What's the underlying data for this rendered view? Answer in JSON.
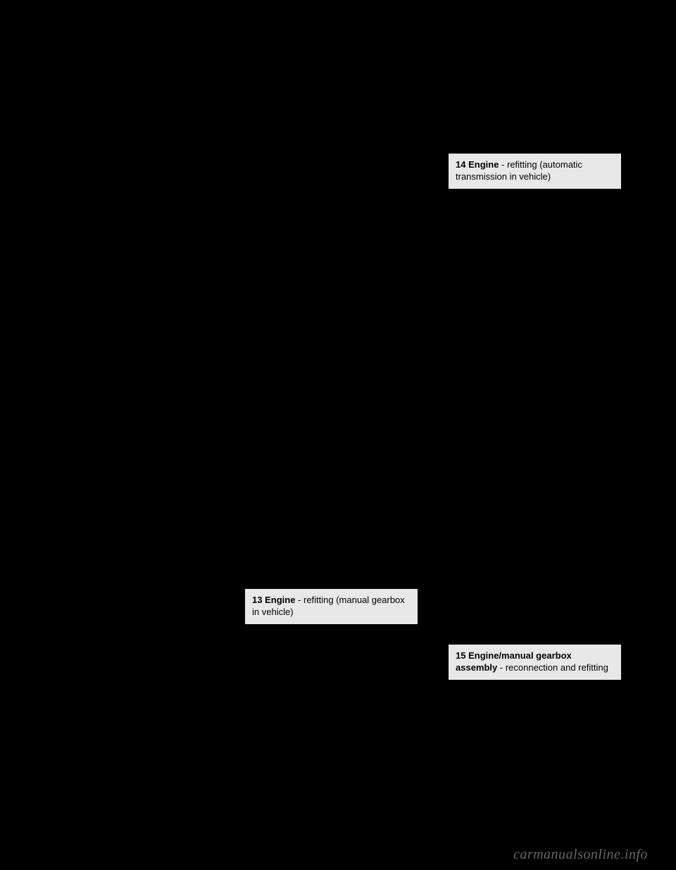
{
  "callouts": {
    "c14": {
      "num": "14",
      "bold": "Engine",
      "rest": " - refitting (automatic transmission in vehicle)"
    },
    "c13": {
      "num": "13",
      "bold": "Engine",
      "rest": " - refitting (manual gearbox in vehicle)"
    },
    "c15": {
      "num": "15",
      "bold": "Engine/manual gearbox assembly",
      "rest": " - reconnection and refitting"
    }
  },
  "watermark": "carmanualsonline.info"
}
